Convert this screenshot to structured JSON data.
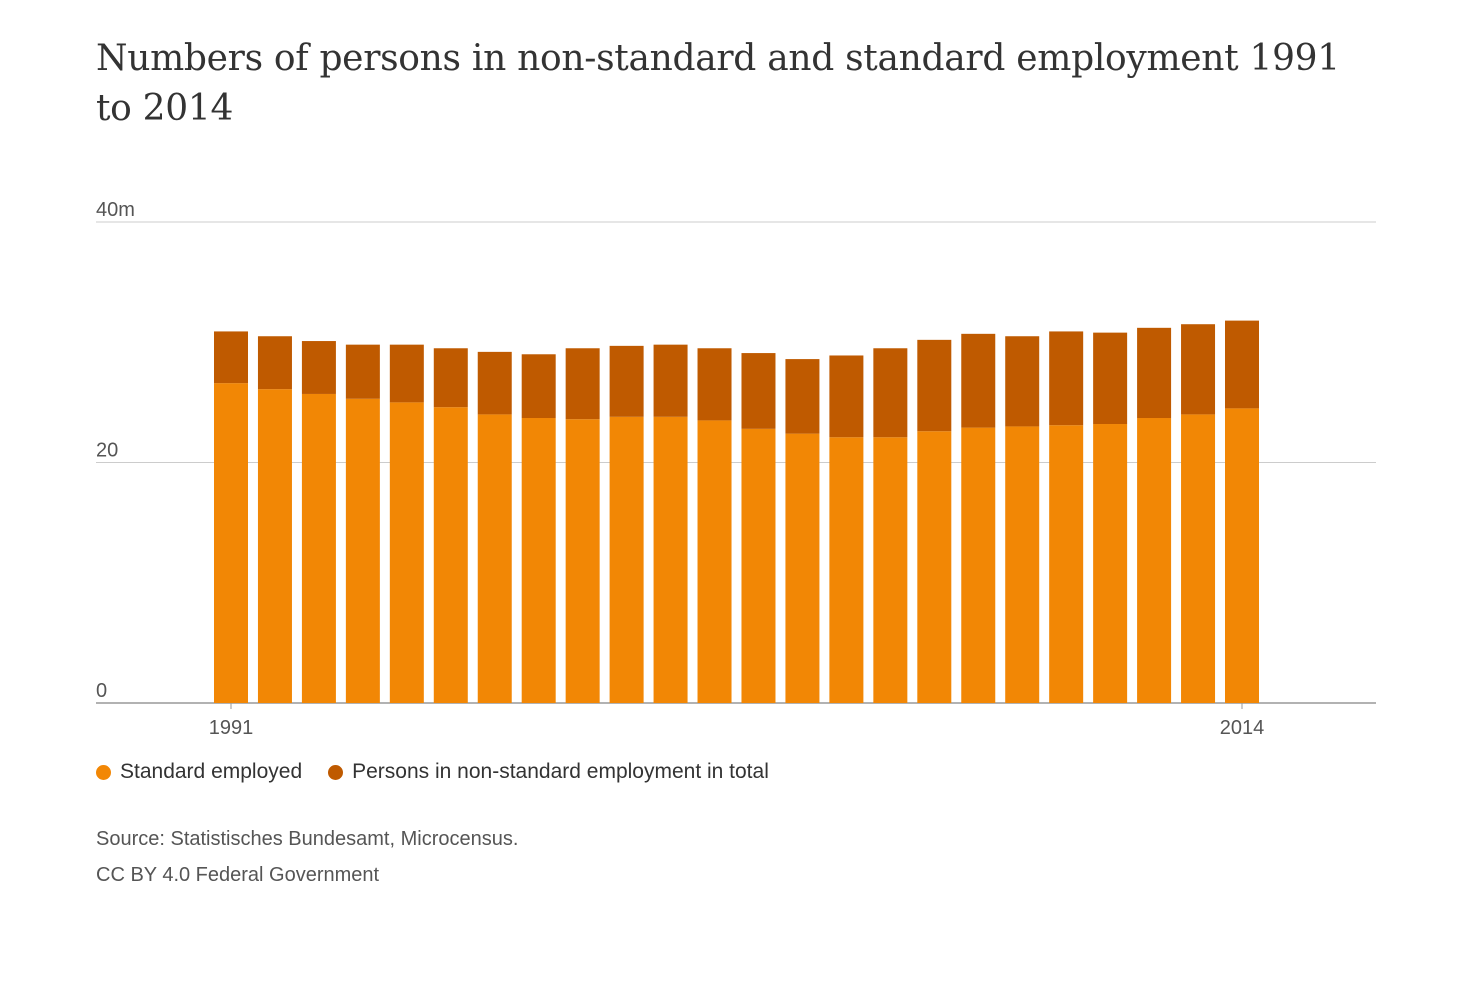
{
  "chart_data": {
    "type": "bar",
    "stacked": true,
    "title": "Numbers of persons in non-standard and standard employment 1991 to 2014",
    "categories": [
      "1991",
      "1992",
      "1993",
      "1994",
      "1995",
      "1996",
      "1997",
      "1998",
      "1999",
      "2000",
      "2001",
      "2002",
      "2003",
      "2004",
      "2005",
      "2006",
      "2007",
      "2008",
      "2009",
      "2010",
      "2011",
      "2012",
      "2013",
      "2014"
    ],
    "x_tick_labels": [
      {
        "category": "1991",
        "label": "1991"
      },
      {
        "category": "2014",
        "label": "2014"
      }
    ],
    "y_ticks": [
      {
        "value": 0,
        "label": "0"
      },
      {
        "value": 20,
        "label": "20"
      },
      {
        "value": 40,
        "label": "40m"
      }
    ],
    "ylim": [
      0,
      40
    ],
    "grid": true,
    "legend_position": "bottom-left",
    "series": [
      {
        "name": "Standard employed",
        "color": "#f28705",
        "values": [
          26.6,
          26.1,
          25.7,
          25.3,
          25.0,
          24.6,
          24.0,
          23.7,
          23.6,
          23.8,
          23.8,
          23.5,
          22.8,
          22.4,
          22.1,
          22.1,
          22.6,
          22.9,
          23.0,
          23.1,
          23.2,
          23.7,
          24.0,
          24.5
        ]
      },
      {
        "name": "Persons in non-standard employment in total",
        "color": "#bf5a00",
        "values": [
          4.3,
          4.4,
          4.4,
          4.5,
          4.8,
          4.9,
          5.2,
          5.3,
          5.9,
          5.9,
          6.0,
          6.0,
          6.3,
          6.2,
          6.8,
          7.4,
          7.6,
          7.8,
          7.5,
          7.8,
          7.6,
          7.5,
          7.5,
          7.3
        ]
      }
    ]
  },
  "source": {
    "line1": "Source: Statistisches Bundesamt, Microcensus.",
    "line2": "CC BY 4.0 Federal Government"
  }
}
